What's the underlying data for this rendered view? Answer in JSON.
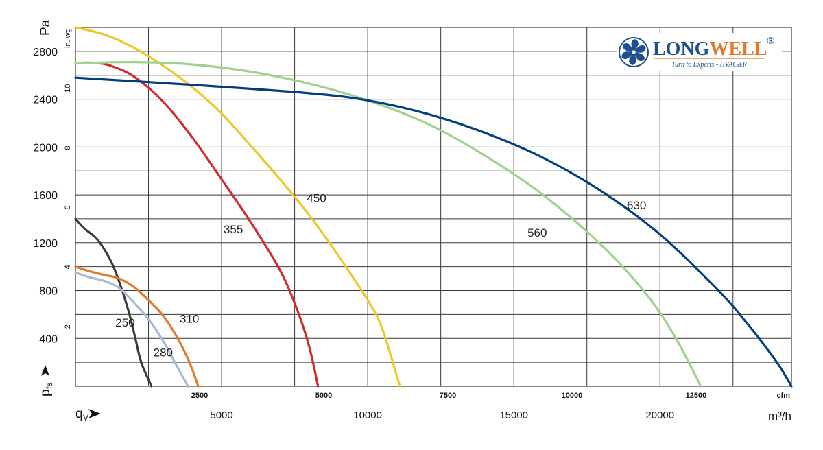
{
  "chart_data": {
    "type": "line",
    "ylabel": "Pa",
    "ylabel_secondary": "in. wg",
    "xlabel_bottom": "q",
    "xlabel_bottom_subscript": "V",
    "ylabel_bottom": "p",
    "ylabel_bottom_subscript": "fs",
    "x_unit": "m³/h",
    "x_unit_secondary": "cfm",
    "xlim": [
      0,
      24500
    ],
    "ylim": [
      0,
      3000
    ],
    "x_ticks": [
      "5000",
      "10000",
      "15000",
      "20000"
    ],
    "x_ticks_cfm": [
      "2500",
      "5000",
      "7500",
      "10000",
      "12500"
    ],
    "y_ticks": [
      "400",
      "800",
      "1200",
      "1600",
      "2000",
      "2400",
      "2800"
    ],
    "y_ticks_inwg": [
      "2",
      "4",
      "6",
      "8",
      "10"
    ],
    "grid": true,
    "series": [
      {
        "name": "250",
        "color": "#3a3a3a",
        "label_at": [
          1700,
          500
        ],
        "points": [
          [
            0,
            1400
          ],
          [
            300,
            1320
          ],
          [
            700,
            1240
          ],
          [
            1000,
            1140
          ],
          [
            1300,
            1000
          ],
          [
            1600,
            800
          ],
          [
            1850,
            600
          ],
          [
            2050,
            400
          ],
          [
            2250,
            200
          ],
          [
            2600,
            0
          ]
        ]
      },
      {
        "name": "280",
        "color": "#a9b8d4",
        "label_at": [
          3000,
          250
        ],
        "points": [
          [
            0,
            950
          ],
          [
            500,
            910
          ],
          [
            1000,
            880
          ],
          [
            1500,
            820
          ],
          [
            2000,
            700
          ],
          [
            2500,
            560
          ],
          [
            3000,
            380
          ],
          [
            3400,
            200
          ],
          [
            3850,
            0
          ]
        ]
      },
      {
        "name": "310",
        "color": "#e07a2a",
        "label_at": [
          3900,
          530
        ],
        "points": [
          [
            0,
            1000
          ],
          [
            500,
            960
          ],
          [
            1000,
            930
          ],
          [
            1500,
            900
          ],
          [
            2000,
            830
          ],
          [
            2500,
            720
          ],
          [
            3000,
            590
          ],
          [
            3500,
            400
          ],
          [
            3900,
            200
          ],
          [
            4200,
            0
          ]
        ]
      },
      {
        "name": "355",
        "color": "#d12a2a",
        "label_at": [
          5400,
          1280
        ],
        "points": [
          [
            0,
            2700
          ],
          [
            400,
            2705
          ],
          [
            800,
            2700
          ],
          [
            1200,
            2680
          ],
          [
            2000,
            2590
          ],
          [
            3000,
            2380
          ],
          [
            4000,
            2080
          ],
          [
            5000,
            1730
          ],
          [
            6000,
            1370
          ],
          [
            7000,
            970
          ],
          [
            7600,
            630
          ],
          [
            8000,
            330
          ],
          [
            8300,
            0
          ]
        ]
      },
      {
        "name": "450",
        "color": "#eec72b",
        "label_at": [
          8250,
          1540
        ],
        "points": [
          [
            0,
            3000
          ],
          [
            1000,
            2940
          ],
          [
            2000,
            2830
          ],
          [
            3000,
            2680
          ],
          [
            4000,
            2500
          ],
          [
            5000,
            2280
          ],
          [
            6000,
            2010
          ],
          [
            7000,
            1730
          ],
          [
            8000,
            1430
          ],
          [
            9000,
            1090
          ],
          [
            10000,
            720
          ],
          [
            10500,
            480
          ],
          [
            11100,
            0
          ]
        ]
      },
      {
        "name": "560",
        "color": "#9fd28e",
        "label_at": [
          15800,
          1250
        ],
        "points": [
          [
            0,
            2700
          ],
          [
            2000,
            2710
          ],
          [
            4000,
            2690
          ],
          [
            6000,
            2630
          ],
          [
            8000,
            2530
          ],
          [
            10000,
            2390
          ],
          [
            12000,
            2200
          ],
          [
            14000,
            1930
          ],
          [
            16000,
            1600
          ],
          [
            18000,
            1180
          ],
          [
            19500,
            780
          ],
          [
            20500,
            420
          ],
          [
            21400,
            0
          ]
        ]
      },
      {
        "name": "630",
        "color": "#003f7f",
        "label_at": [
          19200,
          1480
        ],
        "points": [
          [
            0,
            2580
          ],
          [
            4000,
            2520
          ],
          [
            8000,
            2450
          ],
          [
            10000,
            2390
          ],
          [
            12000,
            2280
          ],
          [
            14000,
            2120
          ],
          [
            16000,
            1910
          ],
          [
            18000,
            1630
          ],
          [
            20000,
            1270
          ],
          [
            22000,
            800
          ],
          [
            23000,
            520
          ],
          [
            24000,
            200
          ],
          [
            24500,
            0
          ]
        ]
      }
    ]
  },
  "logo": {
    "name_part1": "LONG",
    "name_part2": "WELL",
    "registered": "®",
    "tagline": "Turn to Experts - HVAC&R",
    "colors": {
      "primary": "#1f4e91",
      "accent": "#e07a2a"
    }
  }
}
